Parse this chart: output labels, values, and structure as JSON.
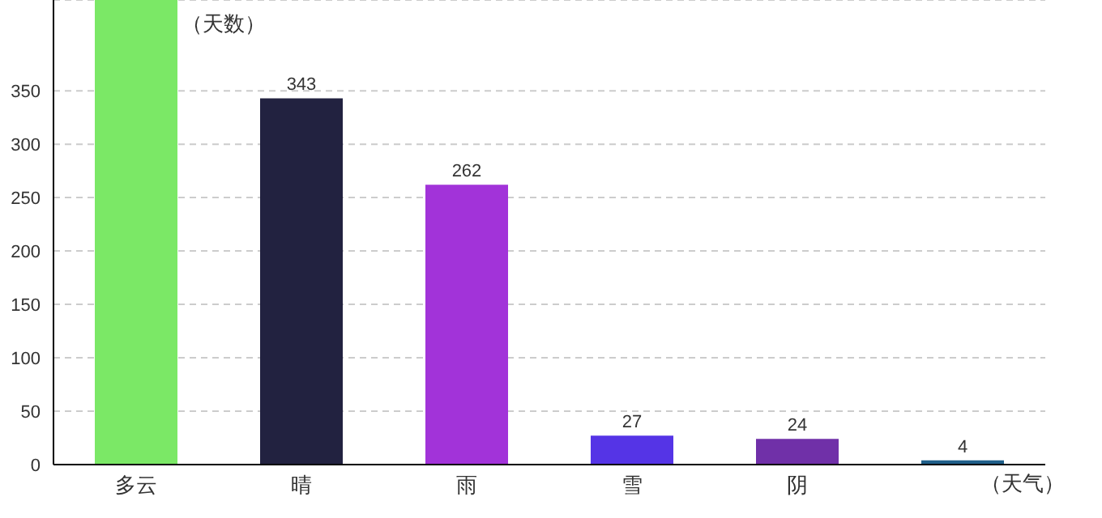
{
  "chart_data": {
    "type": "bar",
    "ylabel": "（天数）",
    "xlabel": "（天气）",
    "categories": [
      "多云",
      "晴",
      "雨",
      "雪",
      "阴",
      null
    ],
    "values": [
      435,
      343,
      262,
      27,
      24,
      4
    ],
    "colors": [
      "#7be866",
      "#222240",
      "#a233d9",
      "#5534e6",
      "#7030a8",
      "#1f5f8a"
    ],
    "value_labels": [
      null,
      "343",
      "262",
      "27",
      "24",
      "4"
    ],
    "ylim": [
      0,
      435
    ],
    "yticks": [
      0,
      50,
      100,
      150,
      200,
      250,
      300,
      350
    ],
    "grid": "y"
  }
}
